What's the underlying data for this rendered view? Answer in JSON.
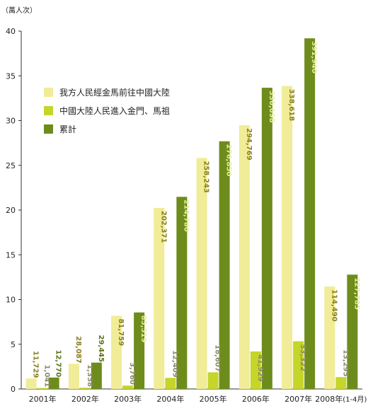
{
  "chart_data": {
    "type": "bar",
    "unit_label": "（萬人次）",
    "categories": [
      "2001年",
      "2002年",
      "2003年",
      "2004年",
      "2005年",
      "2006年",
      "2007年",
      "2008年"
    ],
    "category_suffix": [
      "",
      "",
      "",
      "",
      "",
      "",
      "",
      "(1-4月)"
    ],
    "ylim": [
      0,
      40
    ],
    "yticks": [
      "0",
      "5",
      "10",
      "15",
      "20",
      "25",
      "30",
      "35",
      "40"
    ],
    "grid": false,
    "legend_position": "top-left",
    "series": [
      {
        "name": "我方人民經金馬前往中國大陸",
        "color": "#f0ec98",
        "values": [
          1.1729,
          2.8087,
          8.1759,
          20.2371,
          25.8243,
          29.4769,
          33.8618,
          11.449
        ],
        "labels": [
          "11,729",
          "28,087",
          "81,759",
          "202,371",
          "258,243",
          "294,769",
          "338,618",
          "114,490"
        ]
      },
      {
        "name": "中國大陸人民進入金門、馬祖",
        "color": "#c5d52a",
        "values": [
          0.1041,
          0.1358,
          0.376,
          1.2409,
          1.8607,
          4.1929,
          5.3322,
          1.3295
        ],
        "labels": [
          "1,041",
          "1,358",
          "3,760",
          "12,409",
          "18,607",
          "41,929",
          "53,322",
          "13,295"
        ]
      },
      {
        "name": "累計",
        "color": "#6e8c1c",
        "values": [
          1.277,
          2.9445,
          8.5519,
          21.478,
          27.685,
          33.6698,
          39.194,
          12.7785
        ],
        "labels": [
          "12,770",
          "29,445",
          "85,519",
          "214,780",
          "276,850",
          "336,698",
          "391,940",
          "127,785"
        ]
      }
    ]
  }
}
